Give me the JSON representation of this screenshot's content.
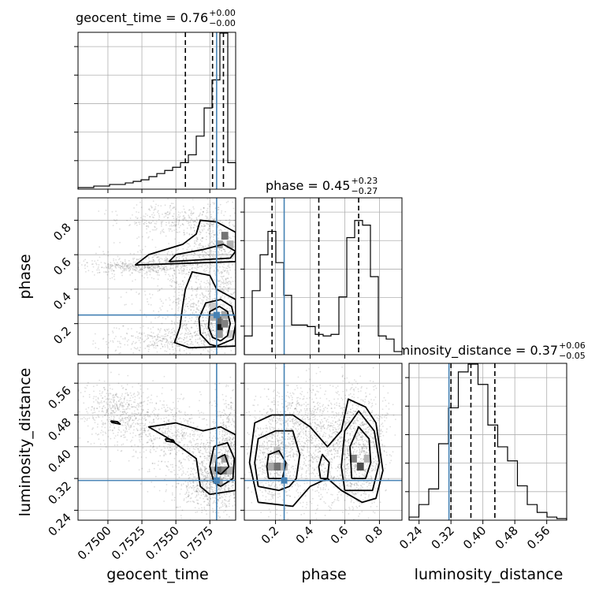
{
  "chart_data": {
    "type": "corner",
    "parameters": [
      "geocent_time",
      "phase",
      "luminosity_distance"
    ],
    "truth_color": "#4682b4",
    "titles": [
      {
        "param": "geocent_time",
        "value": "0.76",
        "plus": "+0.00",
        "minus": "−0.00"
      },
      {
        "param": "phase",
        "value": "0.45",
        "plus": "+0.23",
        "minus": "−0.27"
      },
      {
        "param": "luminosity_distance",
        "value": "0.37",
        "plus": "+0.06",
        "minus": "−0.05"
      }
    ],
    "ranges": {
      "geocent_time": [
        0.7478,
        0.7594
      ],
      "phase": [
        0.02,
        0.93
      ],
      "luminosity_distance": [
        0.215,
        0.61
      ]
    },
    "truths": {
      "geocent_time": 0.758,
      "phase": 0.25,
      "luminosity_distance": 0.315
    },
    "quantiles": {
      "geocent_time": [
        0.7557,
        0.7577,
        0.7585
      ],
      "phase": [
        0.18,
        0.45,
        0.68
      ],
      "luminosity_distance": [
        0.32,
        0.37,
        0.43
      ]
    },
    "ticks": {
      "geocent_time": [
        "0.7500",
        "0.7525",
        "0.7550",
        "0.7575"
      ],
      "phase": [
        "0.2",
        "0.4",
        "0.6",
        "0.8"
      ],
      "luminosity_distance": [
        "0.24",
        "0.32",
        "0.40",
        "0.48",
        "0.56"
      ]
    },
    "hist_geocent_time": [
      0.01,
      0.01,
      0.02,
      0.02,
      0.03,
      0.03,
      0.04,
      0.05,
      0.06,
      0.08,
      0.1,
      0.12,
      0.14,
      0.17,
      0.22,
      0.34,
      0.52,
      0.7,
      1.0,
      0.17
    ],
    "hist_phase": [
      0.12,
      0.41,
      0.64,
      0.79,
      0.59,
      0.38,
      0.19,
      0.19,
      0.18,
      0.13,
      0.12,
      0.13,
      0.37,
      0.75,
      0.86,
      0.83,
      0.5,
      0.12,
      0.1,
      0.02
    ],
    "hist_luminosity_distance": [
      0.02,
      0.1,
      0.2,
      0.49,
      0.72,
      0.95,
      1.0,
      0.87,
      0.61,
      0.47,
      0.38,
      0.22,
      0.1,
      0.05,
      0.02,
      0.01
    ],
    "contour_lines": {
      "phase_vs_geocent_time": [
        [
          [
            0.7583,
            0.1
          ],
          [
            0.7588,
            0.13
          ],
          [
            0.759,
            0.2
          ],
          [
            0.7588,
            0.27
          ],
          [
            0.7582,
            0.3
          ],
          [
            0.7575,
            0.27
          ],
          [
            0.7574,
            0.18
          ],
          [
            0.7577,
            0.12
          ],
          [
            0.7583,
            0.1
          ]
        ],
        [
          [
            0.758,
            0.07
          ],
          [
            0.7592,
            0.11
          ],
          [
            0.7594,
            0.2
          ],
          [
            0.7591,
            0.3
          ],
          [
            0.7583,
            0.34
          ],
          [
            0.7572,
            0.32
          ],
          [
            0.7567,
            0.23
          ],
          [
            0.7568,
            0.14
          ],
          [
            0.7575,
            0.08
          ],
          [
            0.758,
            0.07
          ]
        ],
        [
          [
            0.756,
            0.06
          ],
          [
            0.7594,
            0.07
          ],
          [
            0.7594,
            0.34
          ],
          [
            0.758,
            0.4
          ],
          [
            0.7575,
            0.48
          ],
          [
            0.7562,
            0.5
          ],
          [
            0.7557,
            0.4
          ],
          [
            0.7555,
            0.3
          ],
          [
            0.7553,
            0.18
          ],
          [
            0.7549,
            0.09
          ],
          [
            0.756,
            0.06
          ]
        ],
        [
          [
            0.7545,
            0.56
          ],
          [
            0.759,
            0.58
          ],
          [
            0.7594,
            0.62
          ],
          [
            0.7585,
            0.66
          ],
          [
            0.757,
            0.63
          ],
          [
            0.755,
            0.6
          ],
          [
            0.7545,
            0.56
          ]
        ],
        [
          [
            0.752,
            0.54
          ],
          [
            0.7594,
            0.56
          ],
          [
            0.7594,
            0.73
          ],
          [
            0.758,
            0.79
          ],
          [
            0.7568,
            0.8
          ],
          [
            0.7565,
            0.72
          ],
          [
            0.7555,
            0.66
          ],
          [
            0.753,
            0.6
          ],
          [
            0.752,
            0.54
          ]
        ]
      ],
      "luminosity_distance_vs_geocent_time": [
        [
          [
            0.7583,
            0.33
          ],
          [
            0.7589,
            0.35
          ],
          [
            0.7586,
            0.38
          ],
          [
            0.758,
            0.37
          ],
          [
            0.7579,
            0.34
          ],
          [
            0.7583,
            0.33
          ]
        ],
        [
          [
            0.7583,
            0.3
          ],
          [
            0.7592,
            0.32
          ],
          [
            0.7593,
            0.37
          ],
          [
            0.7588,
            0.41
          ],
          [
            0.7578,
            0.4
          ],
          [
            0.7575,
            0.35
          ],
          [
            0.7578,
            0.31
          ],
          [
            0.7583,
            0.3
          ]
        ],
        [
          [
            0.7575,
            0.28
          ],
          [
            0.7594,
            0.29
          ],
          [
            0.7594,
            0.43
          ],
          [
            0.7583,
            0.45
          ],
          [
            0.757,
            0.44
          ],
          [
            0.755,
            0.46
          ],
          [
            0.753,
            0.45
          ],
          [
            0.7545,
            0.42
          ],
          [
            0.7565,
            0.37
          ],
          [
            0.7568,
            0.3
          ],
          [
            0.7575,
            0.28
          ]
        ],
        [
          [
            0.7502,
            0.465
          ],
          [
            0.7507,
            0.463
          ],
          [
            0.7509,
            0.457
          ],
          [
            0.7503,
            0.461
          ],
          [
            0.7502,
            0.465
          ]
        ],
        [
          [
            0.7542,
            0.42
          ],
          [
            0.7548,
            0.417
          ],
          [
            0.7549,
            0.411
          ],
          [
            0.7543,
            0.414
          ],
          [
            0.7542,
            0.42
          ]
        ]
      ],
      "luminosity_distance_vs_phase": [
        [
          [
            0.16,
            0.32
          ],
          [
            0.24,
            0.32
          ],
          [
            0.26,
            0.36
          ],
          [
            0.22,
            0.39
          ],
          [
            0.16,
            0.38
          ],
          [
            0.15,
            0.35
          ],
          [
            0.16,
            0.32
          ]
        ],
        [
          [
            0.1,
            0.3
          ],
          [
            0.22,
            0.29
          ],
          [
            0.28,
            0.3
          ],
          [
            0.32,
            0.32
          ],
          [
            0.34,
            0.38
          ],
          [
            0.3,
            0.44
          ],
          [
            0.2,
            0.44
          ],
          [
            0.1,
            0.42
          ],
          [
            0.08,
            0.36
          ],
          [
            0.1,
            0.3
          ]
        ],
        [
          [
            0.1,
            0.26
          ],
          [
            0.3,
            0.25
          ],
          [
            0.4,
            0.3
          ],
          [
            0.5,
            0.32
          ],
          [
            0.58,
            0.29
          ],
          [
            0.7,
            0.26
          ],
          [
            0.78,
            0.27
          ],
          [
            0.82,
            0.34
          ],
          [
            0.78,
            0.46
          ],
          [
            0.72,
            0.5
          ],
          [
            0.62,
            0.52
          ],
          [
            0.58,
            0.44
          ],
          [
            0.5,
            0.4
          ],
          [
            0.4,
            0.45
          ],
          [
            0.3,
            0.48
          ],
          [
            0.18,
            0.48
          ],
          [
            0.08,
            0.46
          ],
          [
            0.05,
            0.36
          ],
          [
            0.1,
            0.26
          ]
        ],
        [
          [
            0.64,
            0.32
          ],
          [
            0.72,
            0.32
          ],
          [
            0.75,
            0.36
          ],
          [
            0.74,
            0.42
          ],
          [
            0.68,
            0.45
          ],
          [
            0.63,
            0.4
          ],
          [
            0.64,
            0.32
          ]
        ],
        [
          [
            0.6,
            0.29
          ],
          [
            0.76,
            0.29
          ],
          [
            0.8,
            0.36
          ],
          [
            0.77,
            0.44
          ],
          [
            0.68,
            0.49
          ],
          [
            0.6,
            0.44
          ],
          [
            0.58,
            0.35
          ],
          [
            0.6,
            0.29
          ]
        ],
        [
          [
            0.46,
            0.32
          ],
          [
            0.5,
            0.32
          ],
          [
            0.51,
            0.36
          ],
          [
            0.47,
            0.38
          ],
          [
            0.45,
            0.35
          ],
          [
            0.46,
            0.32
          ]
        ]
      ]
    },
    "density_cells": {
      "phase_vs_geocent_time": [
        [
          0.7582,
          0.18,
          0.9
        ],
        [
          0.7582,
          0.22,
          0.6
        ],
        [
          0.7586,
          0.2,
          0.5
        ],
        [
          0.7582,
          0.14,
          0.4
        ],
        [
          0.7586,
          0.25,
          0.35
        ],
        [
          0.7578,
          0.24,
          0.3
        ],
        [
          0.7586,
          0.71,
          0.55
        ],
        [
          0.759,
          0.66,
          0.3
        ],
        [
          0.7582,
          0.66,
          0.35
        ],
        [
          0.7578,
          0.3,
          0.2
        ],
        [
          0.759,
          0.14,
          0.2
        ]
      ],
      "luminosity_distance_vs_geocent_time": [
        [
          0.7582,
          0.34,
          0.6
        ],
        [
          0.7586,
          0.34,
          0.5
        ],
        [
          0.7586,
          0.37,
          0.35
        ],
        [
          0.7578,
          0.34,
          0.3
        ],
        [
          0.7582,
          0.31,
          0.35
        ],
        [
          0.759,
          0.34,
          0.3
        ],
        [
          0.7578,
          0.37,
          0.2
        ]
      ],
      "luminosity_distance_vs_phase": [
        [
          0.21,
          0.35,
          0.55
        ],
        [
          0.17,
          0.35,
          0.35
        ],
        [
          0.69,
          0.35,
          0.7
        ],
        [
          0.65,
          0.37,
          0.5
        ],
        [
          0.73,
          0.37,
          0.3
        ],
        [
          0.25,
          0.35,
          0.3
        ],
        [
          0.21,
          0.39,
          0.25
        ]
      ]
    }
  }
}
